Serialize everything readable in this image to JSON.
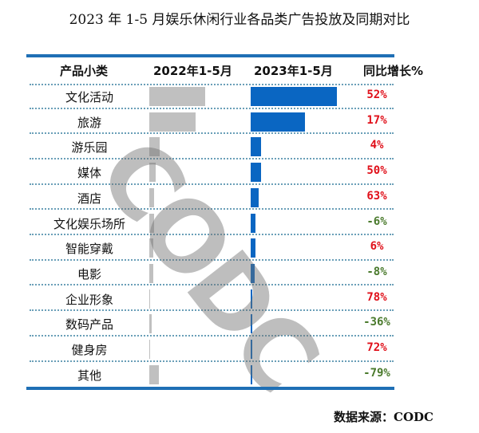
{
  "title": "2023 年 1-5 月娱乐休闲行业各品类广告投放及同期对比",
  "headers": {
    "category": "产品小类",
    "period_2022": "2022年1-5月",
    "period_2023": "2023年1-5月",
    "yoy": "同比增长%"
  },
  "rows": [
    {
      "category": "文化活动",
      "yoy": "52%",
      "w22": 70,
      "w23": 108,
      "sign": "pos"
    },
    {
      "category": "旅游",
      "yoy": "17%",
      "w22": 58,
      "w23": 68,
      "sign": "pos"
    },
    {
      "category": "游乐园",
      "yoy": "4%",
      "w22": 13,
      "w23": 13,
      "sign": "pos"
    },
    {
      "category": "媒体",
      "yoy": "50%",
      "w22": 8,
      "w23": 13,
      "sign": "pos"
    },
    {
      "category": "酒店",
      "yoy": "63%",
      "w22": 6,
      "w23": 10,
      "sign": "pos"
    },
    {
      "category": "文化娱乐场所",
      "yoy": "-6%",
      "w22": 6,
      "w23": 6,
      "sign": "neg"
    },
    {
      "category": "智能穿戴",
      "yoy": "6%",
      "w22": 5,
      "w23": 6,
      "sign": "pos"
    },
    {
      "category": "电影",
      "yoy": "-8%",
      "w22": 5,
      "w23": 5,
      "sign": "neg"
    },
    {
      "category": "企业形象",
      "yoy": "78%",
      "w22": 1,
      "w23": 2,
      "sign": "pos"
    },
    {
      "category": "数码产品",
      "yoy": "-36%",
      "w22": 3,
      "w23": 2,
      "sign": "neg"
    },
    {
      "category": "健身房",
      "yoy": "72%",
      "w22": 1,
      "w23": 2,
      "sign": "pos"
    },
    {
      "category": "其他",
      "yoy": "-79%",
      "w22": 12,
      "w23": 2,
      "sign": "neg"
    }
  ],
  "watermark": "CODC",
  "source": "数据来源：CODC",
  "colors": {
    "bar_2022": "#c0c0c0",
    "bar_2023": "#0a66c2",
    "positive": "#e0101a",
    "negative": "#4a7a2c",
    "rule": "#1f6fb5"
  },
  "chart_data": {
    "type": "bar",
    "title": "2023 年 1-5 月娱乐休闲行业各品类广告投放及同期对比",
    "orientation": "horizontal",
    "categories": [
      "文化活动",
      "旅游",
      "游乐园",
      "媒体",
      "酒店",
      "文化娱乐场所",
      "智能穿戴",
      "电影",
      "企业形象",
      "数码产品",
      "健身房",
      "其他"
    ],
    "series": [
      {
        "name": "2022年1-5月",
        "values": [
          70,
          58,
          13,
          8,
          6,
          6,
          5,
          5,
          1,
          3,
          1,
          12
        ],
        "unit": "relative bar length (px)"
      },
      {
        "name": "2023年1-5月",
        "values": [
          108,
          68,
          13,
          13,
          10,
          6,
          6,
          5,
          2,
          2,
          2,
          2
        ],
        "unit": "relative bar length (px)"
      }
    ],
    "yoy_growth_pct": [
      52,
      17,
      4,
      50,
      63,
      -6,
      6,
      -8,
      78,
      -36,
      72,
      -79
    ],
    "column_headers": [
      "产品小类",
      "2022年1-5月",
      "2023年1-5月",
      "同比增长%"
    ],
    "grid": false,
    "legend": "column headers",
    "source": "数据来源：CODC"
  }
}
